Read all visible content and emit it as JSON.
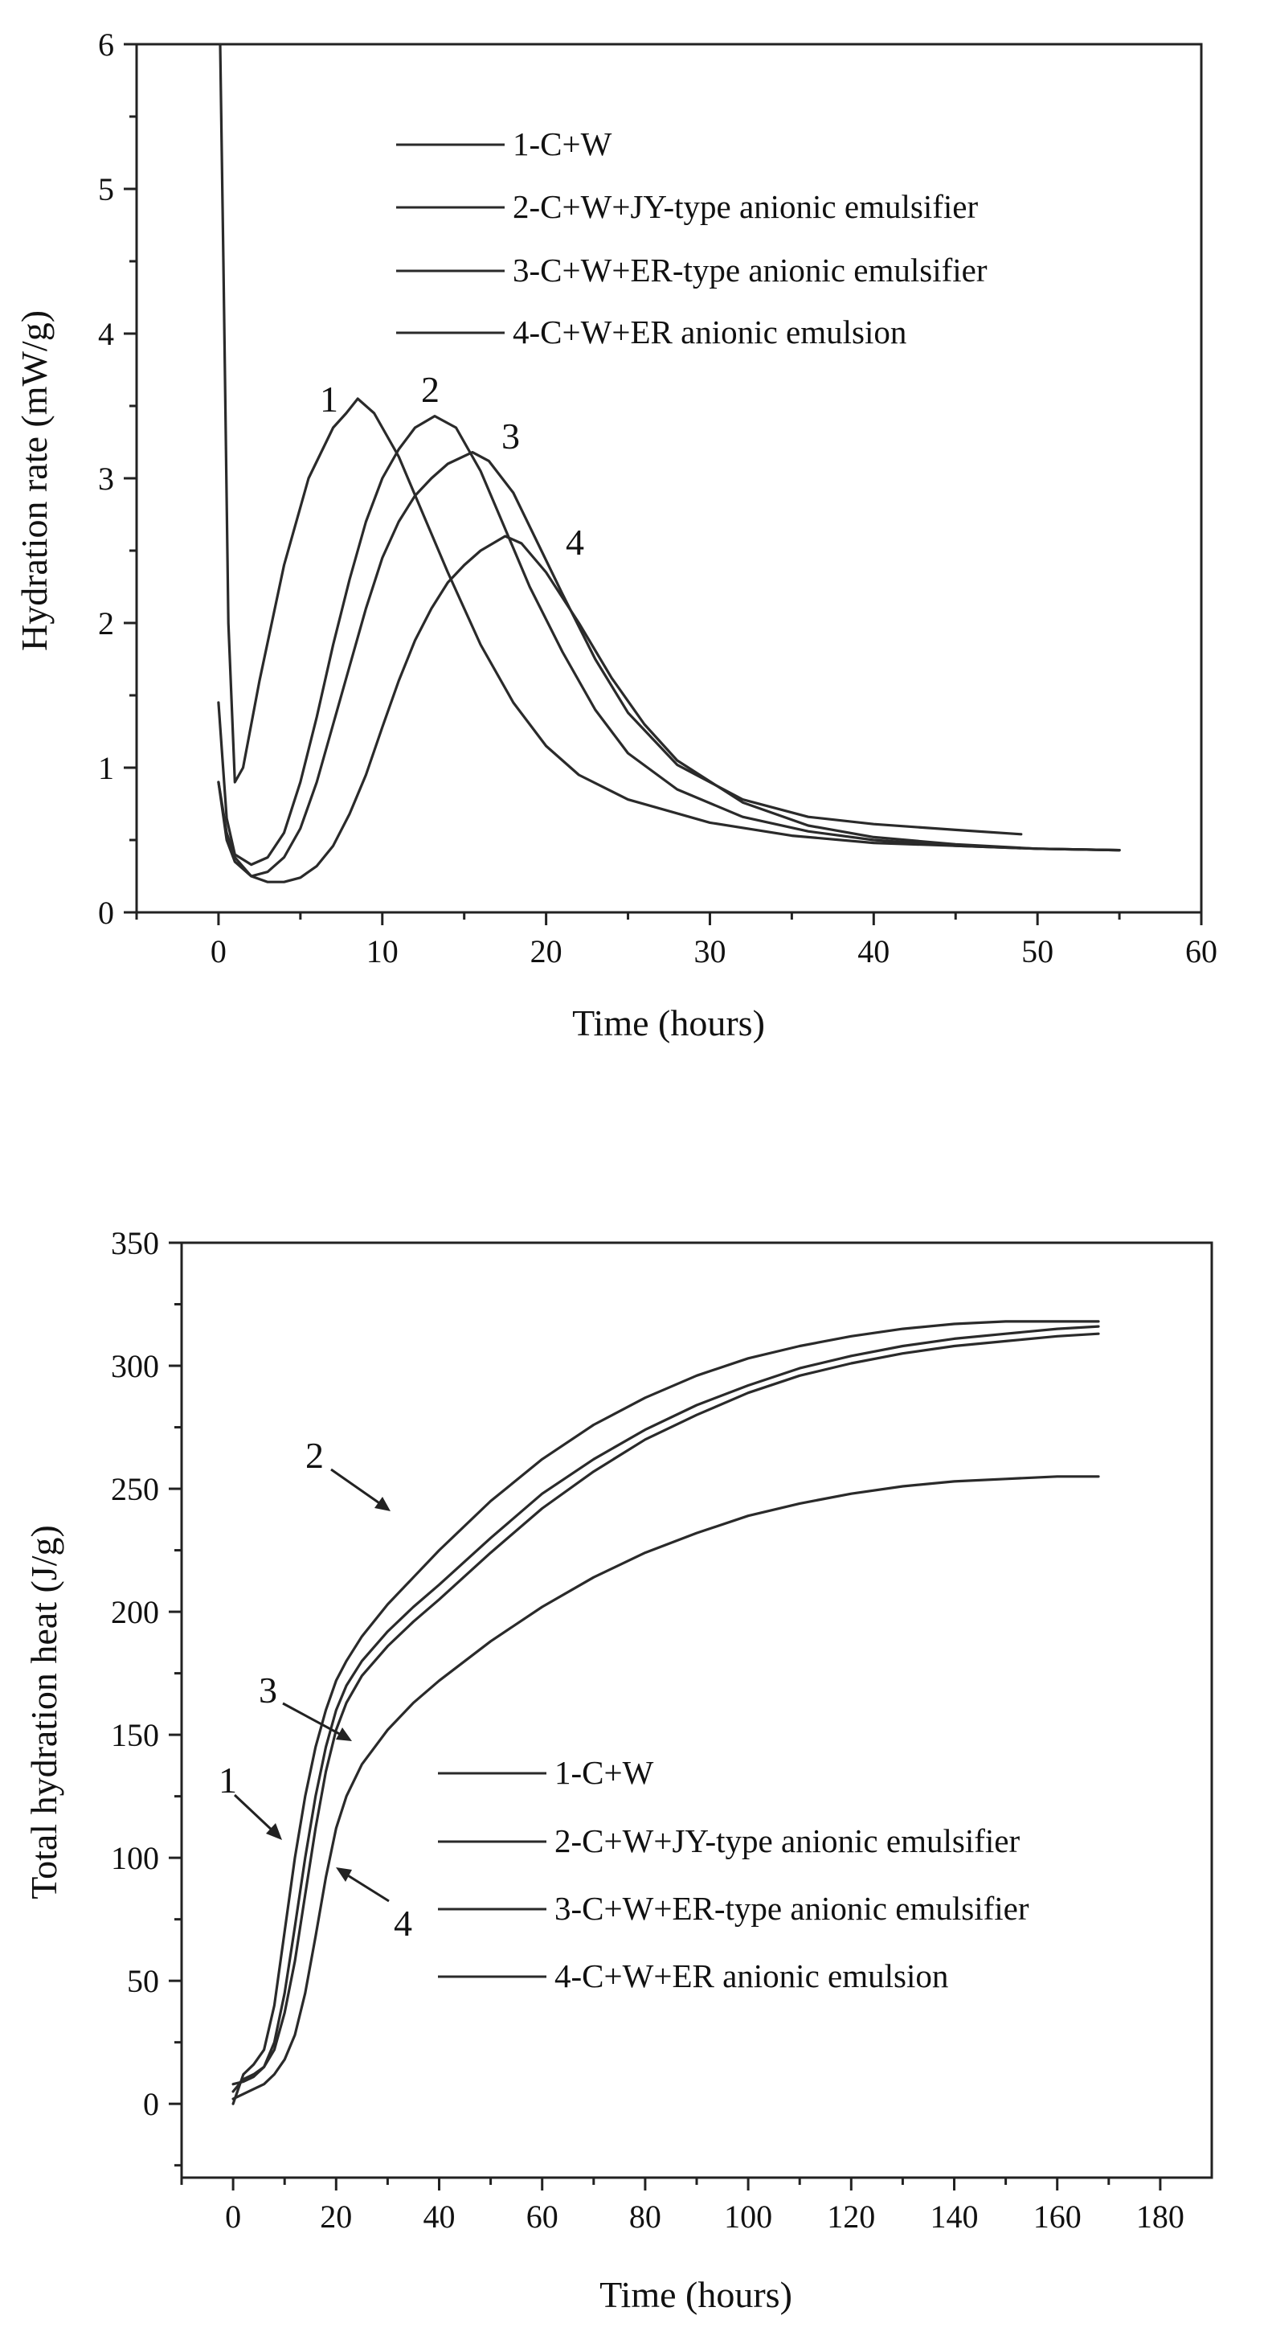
{
  "chart_data": [
    {
      "type": "line",
      "title": "",
      "xlabel": "Time (hours)",
      "ylabel": "Hydration rate (mW/g)",
      "xlim": [
        -5,
        60
      ],
      "ylim": [
        0,
        6
      ],
      "xticks": [
        0,
        10,
        20,
        30,
        40,
        50,
        60
      ],
      "yticks": [
        0,
        1,
        2,
        3,
        4,
        5,
        6
      ],
      "x_tick_labels": [
        "0",
        "10",
        "20",
        "30",
        "40",
        "50",
        "60"
      ],
      "y_tick_labels": [
        "0",
        "1",
        "2",
        "3",
        "4",
        "5",
        "6"
      ],
      "legend": [
        "1-C+W",
        "2-C+W+JY-type anionic emulsifier",
        "3-C+W+ER-type anionic emulsifier",
        "4-C+W+ER anionic emulsion"
      ],
      "series": [
        {
          "name": "1-C+W",
          "label": "1",
          "x": [
            0.1,
            0.3,
            0.6,
            1,
            1.5,
            2.5,
            4,
            5.5,
            7,
            7.8,
            8.5,
            9.5,
            11,
            12.5,
            14,
            16,
            18,
            20,
            22,
            25,
            30,
            35,
            40,
            45,
            50,
            55
          ],
          "y": [
            6.0,
            4.5,
            2.0,
            0.9,
            1.0,
            1.6,
            2.4,
            3.0,
            3.35,
            3.45,
            3.55,
            3.45,
            3.15,
            2.75,
            2.35,
            1.85,
            1.45,
            1.15,
            0.95,
            0.78,
            0.62,
            0.53,
            0.48,
            0.46,
            0.44,
            0.43
          ]
        },
        {
          "name": "2-C+W+JY-type anionic emulsifier",
          "label": "2",
          "x": [
            0,
            0.5,
            1,
            2,
            3,
            4,
            5,
            6,
            7,
            8,
            9,
            10,
            11,
            12,
            13.2,
            14.5,
            16,
            17.5,
            19,
            21,
            23,
            25,
            28,
            32,
            36,
            40,
            45,
            50,
            55
          ],
          "y": [
            1.45,
            0.65,
            0.4,
            0.33,
            0.38,
            0.55,
            0.9,
            1.35,
            1.85,
            2.3,
            2.7,
            3.0,
            3.2,
            3.35,
            3.43,
            3.35,
            3.05,
            2.65,
            2.25,
            1.8,
            1.4,
            1.1,
            0.85,
            0.66,
            0.56,
            0.5,
            0.46,
            0.44,
            0.43
          ]
        },
        {
          "name": "3-C+W+ER-type anionic emulsifier",
          "label": "3",
          "x": [
            0,
            0.5,
            1,
            2,
            3,
            4,
            5,
            6,
            7,
            8,
            9,
            10,
            11,
            12,
            13,
            14,
            15.5,
            16.5,
            18,
            19.5,
            21,
            23,
            25,
            28,
            32,
            36,
            40,
            45,
            49
          ],
          "y": [
            0.9,
            0.5,
            0.35,
            0.25,
            0.28,
            0.38,
            0.58,
            0.9,
            1.3,
            1.7,
            2.1,
            2.45,
            2.7,
            2.88,
            3.0,
            3.1,
            3.18,
            3.12,
            2.9,
            2.55,
            2.2,
            1.75,
            1.38,
            1.02,
            0.78,
            0.66,
            0.61,
            0.57,
            0.54
          ]
        },
        {
          "name": "4-C+W+ER anionic emulsion",
          "label": "4",
          "x": [
            0,
            0.5,
            1,
            2,
            3,
            4,
            5,
            6,
            7,
            8,
            9,
            10,
            11,
            12,
            13,
            14,
            15,
            16,
            17.5,
            18.5,
            20,
            22,
            24,
            26,
            28,
            32,
            36,
            40,
            45,
            50,
            55
          ],
          "y": [
            0.9,
            0.55,
            0.38,
            0.25,
            0.21,
            0.21,
            0.24,
            0.32,
            0.46,
            0.68,
            0.95,
            1.28,
            1.6,
            1.88,
            2.1,
            2.28,
            2.4,
            2.5,
            2.6,
            2.55,
            2.35,
            2.0,
            1.62,
            1.3,
            1.05,
            0.76,
            0.6,
            0.52,
            0.47,
            0.44,
            0.43
          ]
        }
      ]
    },
    {
      "type": "line",
      "title": "",
      "xlabel": "Time (hours)",
      "ylabel": "Total hydration heat (J/g)",
      "xlim": [
        -10,
        190
      ],
      "ylim": [
        -30,
        350
      ],
      "xticks": [
        0,
        20,
        40,
        60,
        80,
        100,
        120,
        140,
        160,
        180
      ],
      "yticks": [
        0,
        50,
        100,
        150,
        200,
        250,
        300,
        350
      ],
      "x_tick_labels": [
        "0",
        "20",
        "40",
        "60",
        "80",
        "100",
        "120",
        "140",
        "160",
        "180"
      ],
      "y_tick_labels": [
        "0",
        "50",
        "100",
        "150",
        "200",
        "250",
        "300",
        "350"
      ],
      "legend": [
        "1-C+W",
        "2-C+W+JY-type anionic emulsifier",
        "3-C+W+ER-type anionic emulsifier",
        "4-C+W+ER anionic emulsion"
      ],
      "annotations": [
        "1",
        "2",
        "3",
        "4"
      ],
      "series": [
        {
          "name": "1-C+W",
          "label": "1",
          "x": [
            0,
            2,
            4,
            6,
            8,
            10,
            12,
            14,
            16,
            18,
            20,
            22,
            25,
            30,
            35,
            40,
            50,
            60,
            70,
            80,
            90,
            100,
            110,
            120,
            130,
            140,
            150,
            160,
            168
          ],
          "y": [
            0,
            12,
            16,
            22,
            40,
            70,
            100,
            125,
            145,
            160,
            172,
            180,
            190,
            203,
            214,
            225,
            245,
            262,
            276,
            287,
            296,
            303,
            308,
            312,
            315,
            317,
            318,
            318,
            318
          ]
        },
        {
          "name": "2-C+W+JY-type anionic emulsifier",
          "label": "2",
          "x": [
            0,
            2,
            4,
            6,
            8,
            10,
            12,
            14,
            16,
            18,
            20,
            22,
            25,
            30,
            35,
            40,
            50,
            60,
            70,
            80,
            90,
            100,
            110,
            120,
            130,
            140,
            150,
            160,
            168
          ],
          "y": [
            5,
            10,
            12,
            15,
            25,
            45,
            72,
            100,
            125,
            145,
            160,
            170,
            180,
            192,
            202,
            211,
            230,
            248,
            262,
            274,
            284,
            292,
            299,
            304,
            308,
            311,
            313,
            315,
            316
          ]
        },
        {
          "name": "3-C+W+ER-type anionic emulsifier",
          "label": "3",
          "x": [
            0,
            2,
            4,
            6,
            8,
            10,
            12,
            14,
            16,
            18,
            20,
            22,
            25,
            30,
            35,
            40,
            50,
            60,
            70,
            80,
            90,
            100,
            110,
            120,
            130,
            140,
            150,
            160,
            168
          ],
          "y": [
            8,
            9,
            11,
            15,
            22,
            37,
            58,
            85,
            112,
            135,
            152,
            163,
            174,
            186,
            196,
            205,
            224,
            242,
            257,
            270,
            280,
            289,
            296,
            301,
            305,
            308,
            310,
            312,
            313
          ]
        },
        {
          "name": "4-C+W+ER anionic emulsion",
          "label": "4",
          "x": [
            0,
            2,
            4,
            6,
            8,
            10,
            12,
            14,
            16,
            18,
            20,
            22,
            25,
            30,
            35,
            40,
            50,
            60,
            70,
            80,
            90,
            100,
            110,
            120,
            130,
            140,
            150,
            160,
            168
          ],
          "y": [
            2,
            4,
            6,
            8,
            12,
            18,
            28,
            45,
            68,
            92,
            112,
            125,
            138,
            152,
            163,
            172,
            188,
            202,
            214,
            224,
            232,
            239,
            244,
            248,
            251,
            253,
            254,
            255,
            255
          ]
        }
      ]
    }
  ]
}
